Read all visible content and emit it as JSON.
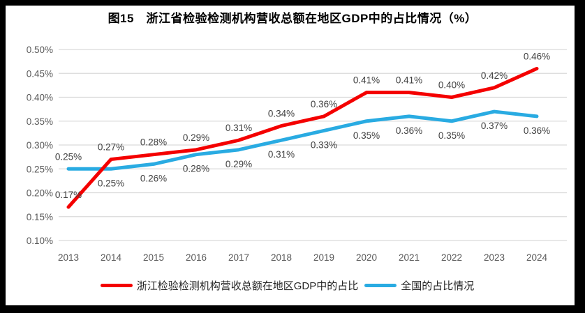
{
  "window": {
    "frame_color": "#000000",
    "panel_background": "#ffffff"
  },
  "chart_data": {
    "type": "line",
    "title": "图15　浙江省检验检测机构营收总额在地区GDP中的占比情况（%）",
    "categories": [
      "2013",
      "2014",
      "2015",
      "2016",
      "2017",
      "2018",
      "2019",
      "2020",
      "2021",
      "2022",
      "2023",
      "2024"
    ],
    "series": [
      {
        "name": "浙江检验检测机构营收总额在地区GDP中的占比",
        "color": "#f40000",
        "values": [
          0.17,
          0.27,
          0.28,
          0.29,
          0.31,
          0.34,
          0.36,
          0.41,
          0.41,
          0.4,
          0.42,
          0.46
        ],
        "labels": [
          "0.17%",
          "0.27%",
          "0.28%",
          "0.29%",
          "0.31%",
          "0.34%",
          "0.36%",
          "0.41%",
          "0.41%",
          "0.40%",
          "0.42%",
          "0.46%"
        ],
        "label_position": "above"
      },
      {
        "name": "全国的占比情况",
        "color": "#29abe2",
        "values": [
          0.25,
          0.25,
          0.26,
          0.28,
          0.29,
          0.31,
          0.33,
          0.35,
          0.36,
          0.35,
          0.37,
          0.36
        ],
        "labels": [
          "0.25%",
          "0.25%",
          "0.26%",
          "0.28%",
          "0.29%",
          "0.31%",
          "0.33%",
          "0.35%",
          "0.36%",
          "0.35%",
          "0.37%",
          "0.36%"
        ],
        "label_position": "below",
        "label_position_overrides": {
          "0": "above"
        }
      }
    ],
    "ylim": [
      0.1,
      0.5
    ],
    "y_ticks": [
      "0.50%",
      "0.45%",
      "0.40%",
      "0.35%",
      "0.30%",
      "0.25%",
      "0.20%",
      "0.15%",
      "0.10%"
    ],
    "xlabel": "",
    "ylabel": "",
    "grid": true,
    "legend_position": "bottom",
    "grid_color": "#d9d9d9",
    "tick_color": "#595959",
    "data_label_color": "#404040"
  }
}
